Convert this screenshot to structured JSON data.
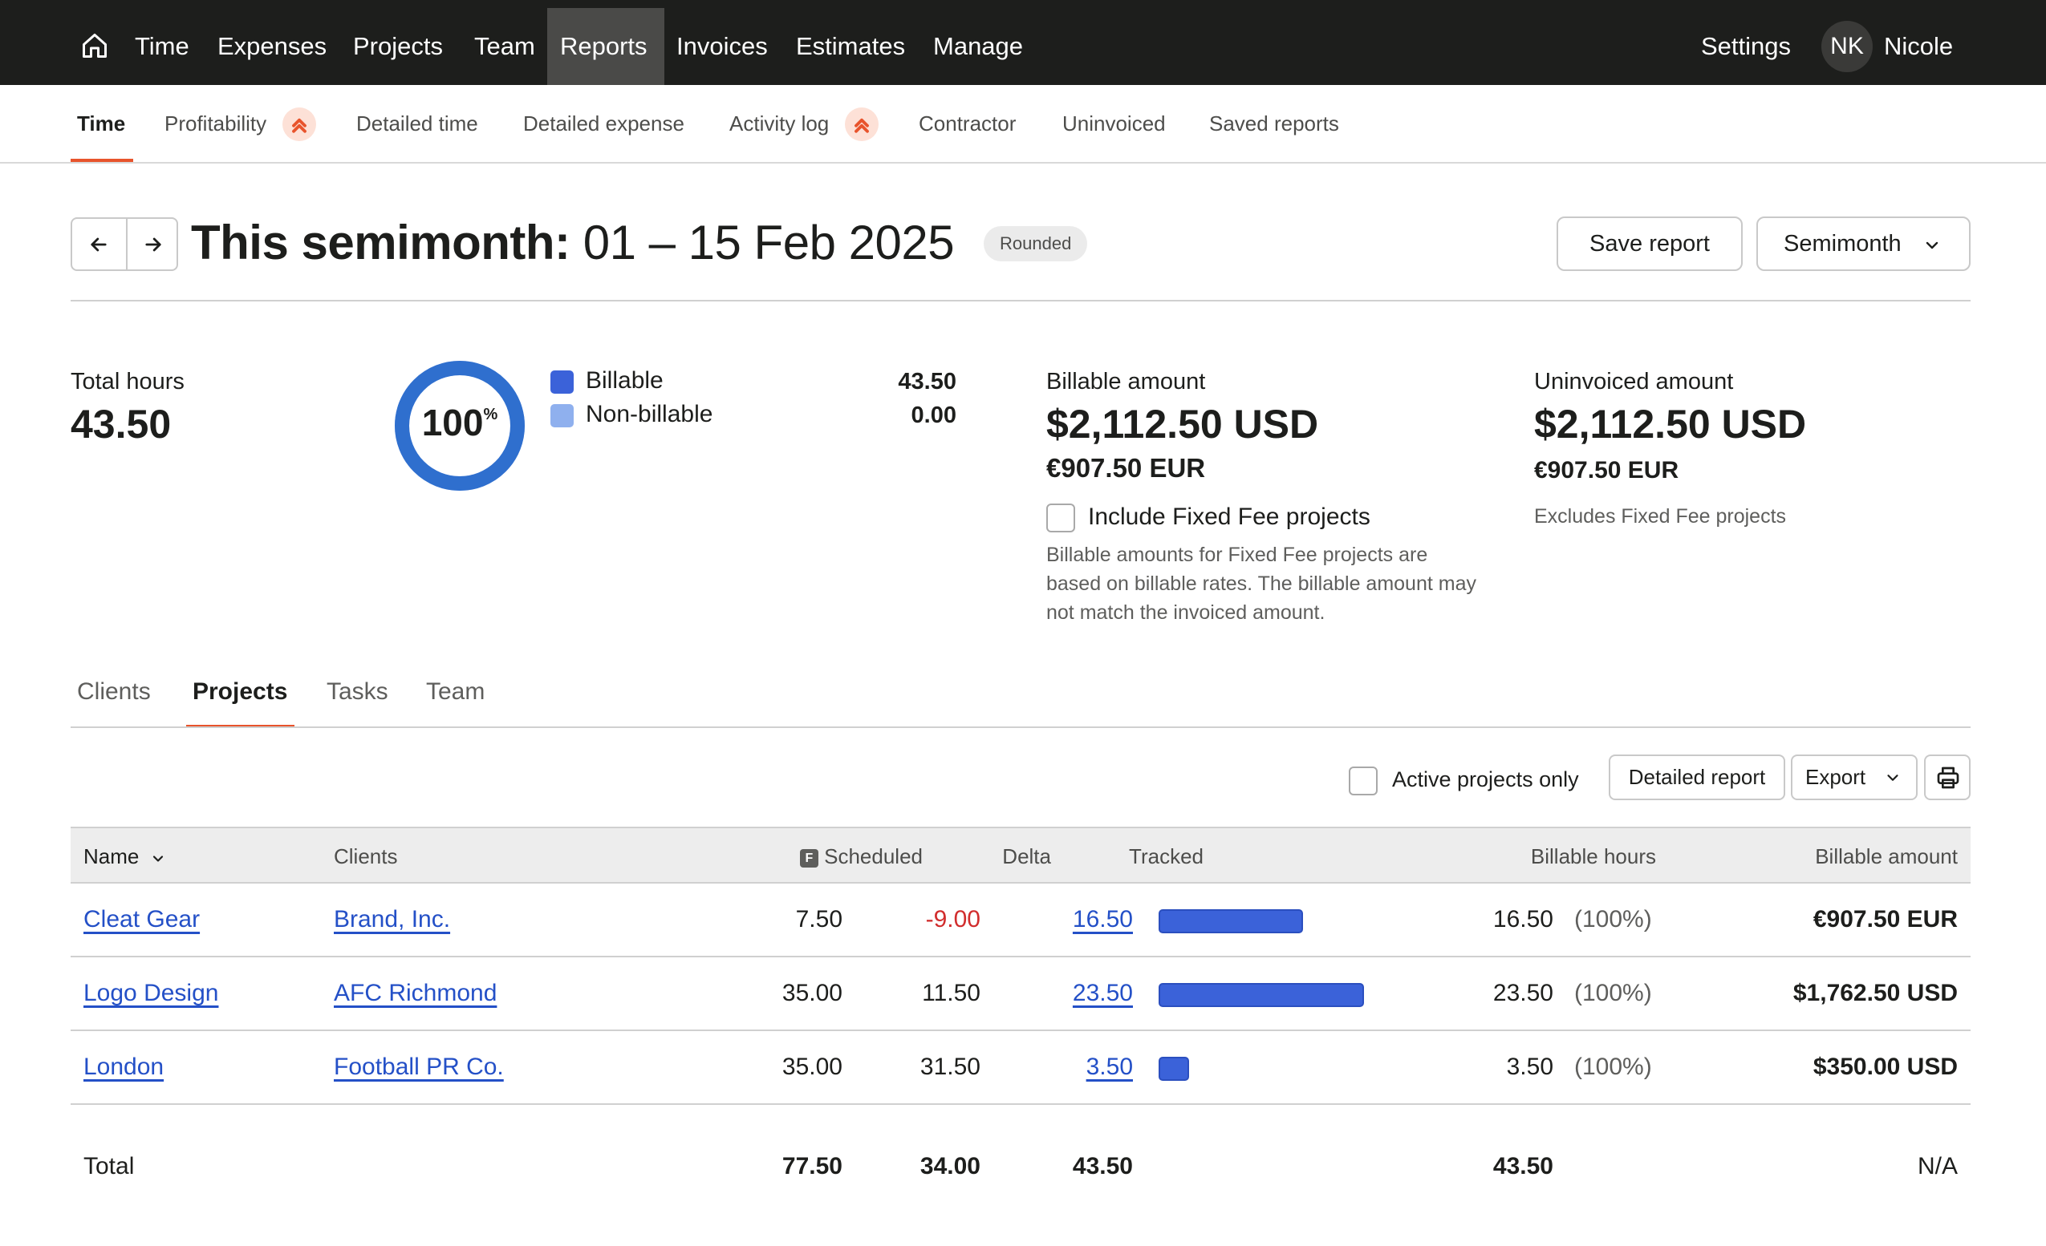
{
  "topnav": {
    "items": [
      "Time",
      "Expenses",
      "Projects",
      "Team",
      "Reports",
      "Invoices",
      "Estimates",
      "Manage"
    ],
    "active": "Reports",
    "settings": "Settings",
    "user_initials": "NK",
    "user_name": "Nicole"
  },
  "subnav": {
    "items": [
      "Time",
      "Profitability",
      "Detailed time",
      "Detailed expense",
      "Activity log",
      "Contractor",
      "Uninvoiced",
      "Saved reports"
    ],
    "active": "Time"
  },
  "header": {
    "title_prefix": "This semimonth:",
    "title_range": "01 – 15 Feb 2025",
    "badge": "Rounded",
    "save_report": "Save report",
    "period_select": "Semimonth"
  },
  "summary": {
    "total_hours_label": "Total hours",
    "total_hours": "43.50",
    "donut_percent": "100",
    "donut_percent_sign": "%",
    "billable_fraction": 1.0,
    "legend": [
      {
        "label": "Billable",
        "value": "43.50",
        "color": "#3b62d9"
      },
      {
        "label": "Non-billable",
        "value": "0.00",
        "color": "#8fb0ee"
      }
    ],
    "billable_amount_label": "Billable amount",
    "billable_amount_usd": "$2,112.50 USD",
    "billable_amount_eur": "€907.50 EUR",
    "include_fixed_fee": "Include Fixed Fee projects",
    "fixed_fee_note": "Billable amounts for Fixed Fee projects are based on billable rates. The billable amount may not match the invoiced amount.",
    "uninvoiced_label": "Uninvoiced amount",
    "uninvoiced_usd": "$2,112.50 USD",
    "uninvoiced_eur": "€907.50 EUR",
    "uninvoiced_note": "Excludes Fixed Fee projects"
  },
  "detail_tabs": {
    "items": [
      "Clients",
      "Projects",
      "Tasks",
      "Team"
    ],
    "active": "Projects"
  },
  "toolbar": {
    "active_only": "Active projects only",
    "detailed_report": "Detailed report",
    "export": "Export"
  },
  "table": {
    "headers": {
      "name": "Name",
      "clients": "Clients",
      "scheduled_icon": "F",
      "scheduled": "Scheduled",
      "delta": "Delta",
      "tracked": "Tracked",
      "billable_hours": "Billable hours",
      "billable_amount": "Billable amount"
    },
    "rows": [
      {
        "name": "Cleat Gear",
        "client": "Brand, Inc.",
        "scheduled": "7.50",
        "delta": "-9.00",
        "tracked": "16.50",
        "tracked_value": 16.5,
        "billable_hours": "16.50",
        "billable_pct": "(100%)",
        "billable_amount": "€907.50 EUR"
      },
      {
        "name": "Logo Design",
        "client": "AFC Richmond",
        "scheduled": "35.00",
        "delta": "11.50",
        "tracked": "23.50",
        "tracked_value": 23.5,
        "billable_hours": "23.50",
        "billable_pct": "(100%)",
        "billable_amount": "$1,762.50 USD"
      },
      {
        "name": "London",
        "client": "Football PR Co.",
        "scheduled": "35.00",
        "delta": "31.50",
        "tracked": "3.50",
        "tracked_value": 3.5,
        "billable_hours": "3.50",
        "billable_pct": "(100%)",
        "billable_amount": "$350.00 USD"
      }
    ],
    "total": {
      "label": "Total",
      "scheduled": "77.50",
      "delta": "34.00",
      "tracked": "43.50",
      "billable_hours": "43.50",
      "billable_amount": "N/A"
    }
  }
}
